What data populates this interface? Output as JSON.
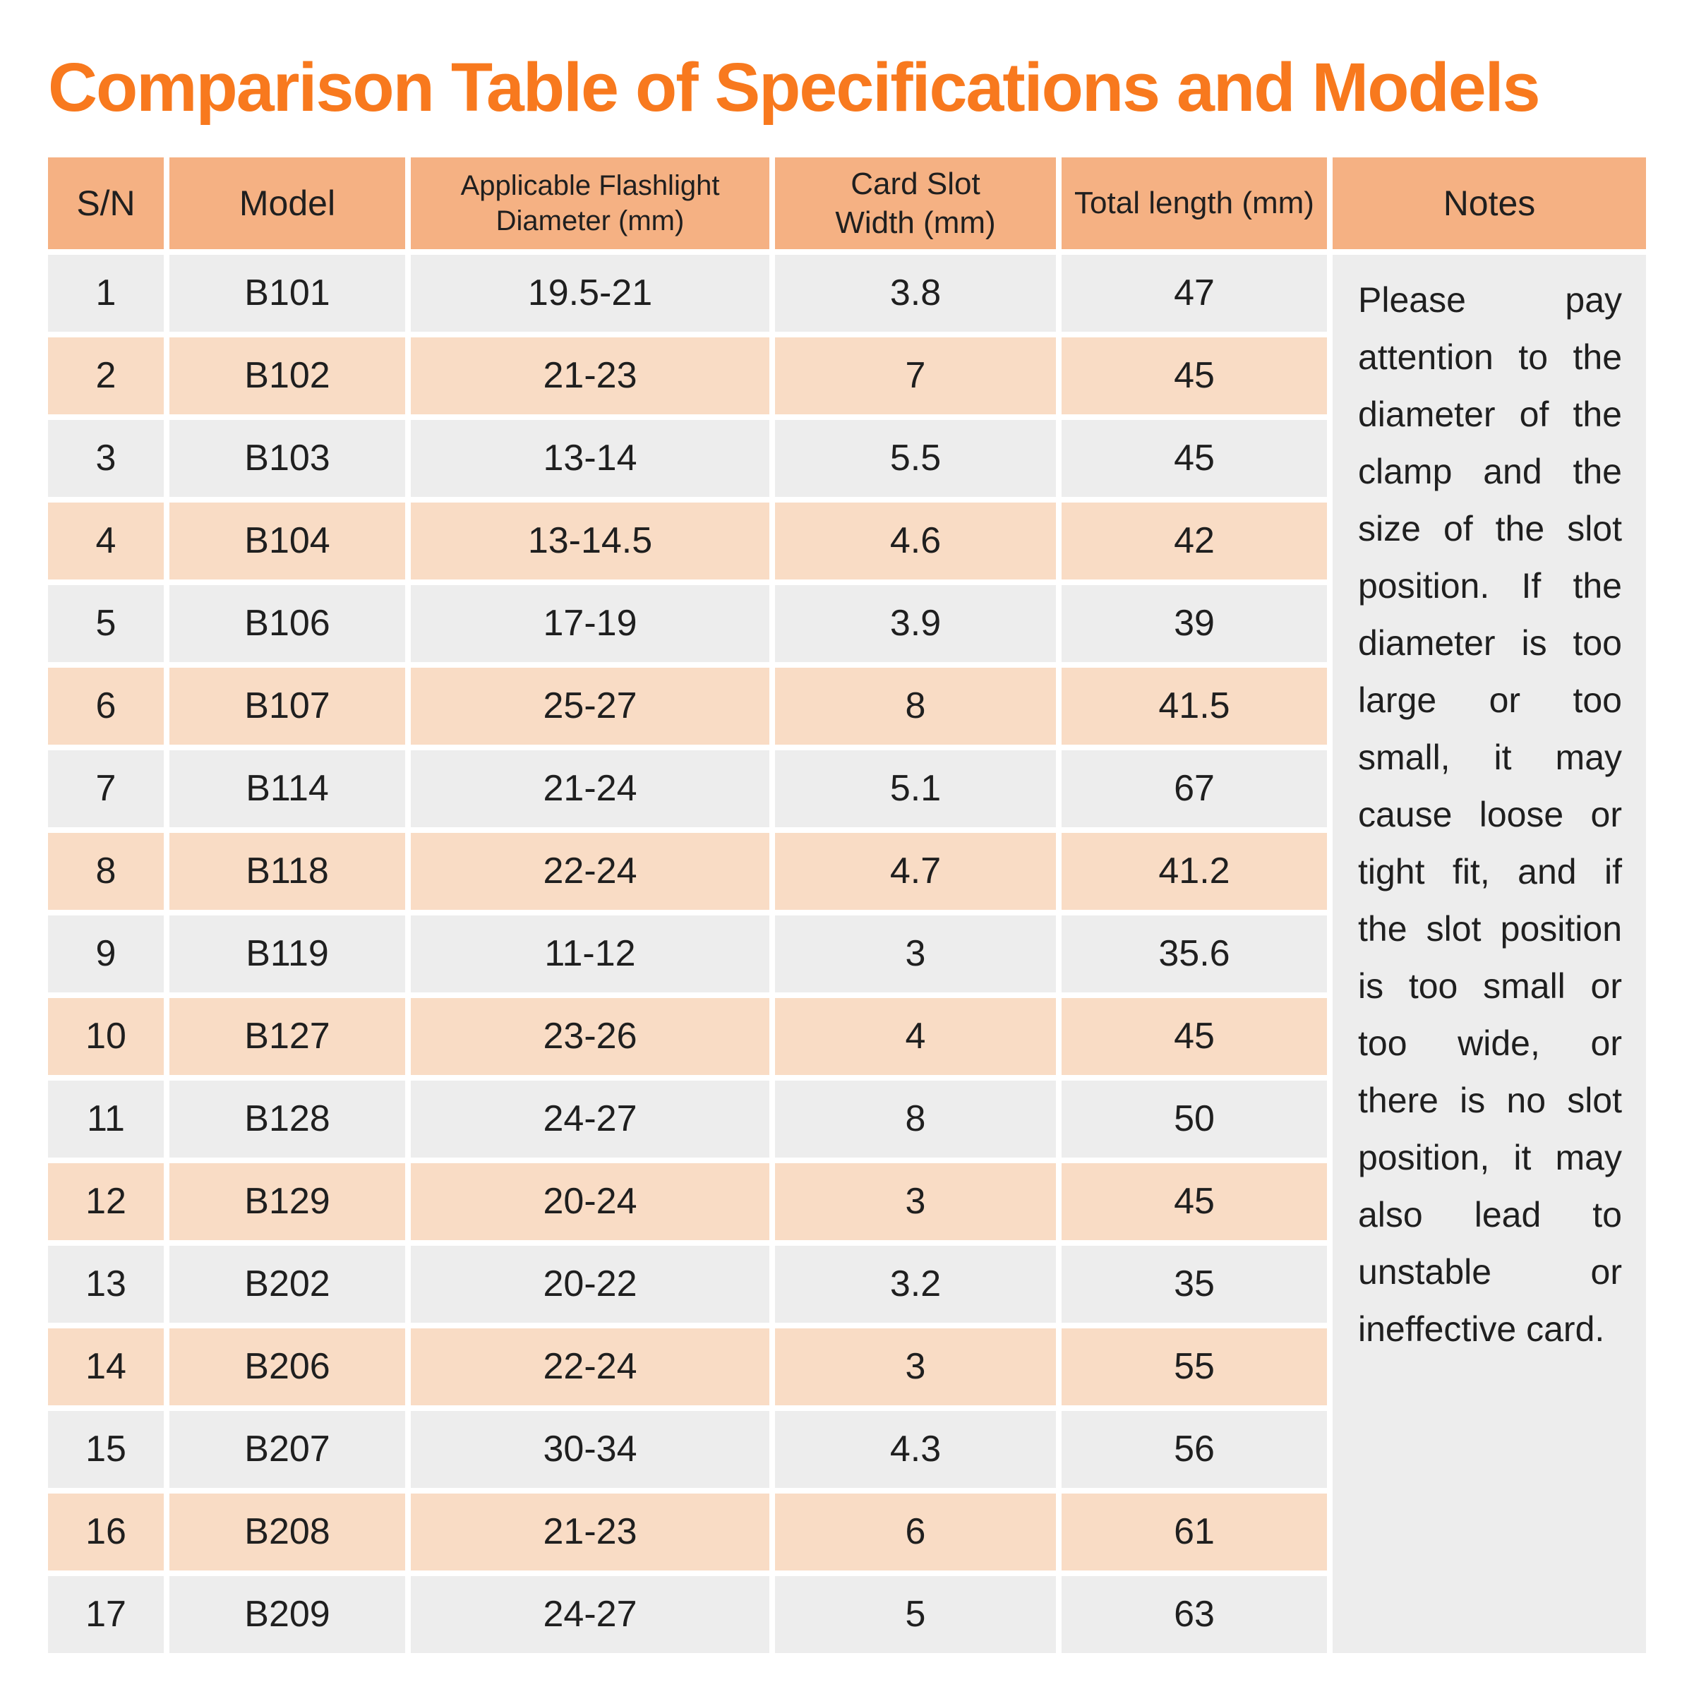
{
  "title": "Comparison Table of Specifications and Models",
  "colors": {
    "title": "#f8791e",
    "header_bg": "#f5b183",
    "row_odd": "#ededed",
    "row_even": "#f9dcc5",
    "notes_bg": "#ededed",
    "text": "#1f1f1f"
  },
  "table": {
    "headers": [
      "S/N",
      "Model",
      "Applicable Flashlight\nDiameter (mm)",
      "Card Slot\nWidth (mm)",
      "Total length (mm)",
      "Notes"
    ],
    "rows": [
      [
        "1",
        "B101",
        "19.5-21",
        "3.8",
        "47"
      ],
      [
        "2",
        "B102",
        "21-23",
        "7",
        "45"
      ],
      [
        "3",
        "B103",
        "13-14",
        "5.5",
        "45"
      ],
      [
        "4",
        "B104",
        "13-14.5",
        "4.6",
        "42"
      ],
      [
        "5",
        "B106",
        "17-19",
        "3.9",
        "39"
      ],
      [
        "6",
        "B107",
        "25-27",
        "8",
        "41.5"
      ],
      [
        "7",
        "B114",
        "21-24",
        "5.1",
        "67"
      ],
      [
        "8",
        "B118",
        "22-24",
        "4.7",
        "41.2"
      ],
      [
        "9",
        "B119",
        "11-12",
        "3",
        "35.6"
      ],
      [
        "10",
        "B127",
        "23-26",
        "4",
        "45"
      ],
      [
        "11",
        "B128",
        "24-27",
        "8",
        "50"
      ],
      [
        "12",
        "B129",
        "20-24",
        "3",
        "45"
      ],
      [
        "13",
        "B202",
        "20-22",
        "3.2",
        "35"
      ],
      [
        "14",
        "B206",
        "22-24",
        "3",
        "55"
      ],
      [
        "15",
        "B207",
        "30-34",
        "4.3",
        "56"
      ],
      [
        "16",
        "B208",
        "21-23",
        "6",
        "61"
      ],
      [
        "17",
        "B209",
        "24-27",
        "5",
        "63"
      ]
    ],
    "notes": "Please pay attention to the diameter of the clamp and the size of the slot position. If the diameter is too large or too small, it may cause loose or tight fit, and if the slot position is too small or too wide, or there is no slot position, it may also lead to unstable or ineffective card."
  }
}
